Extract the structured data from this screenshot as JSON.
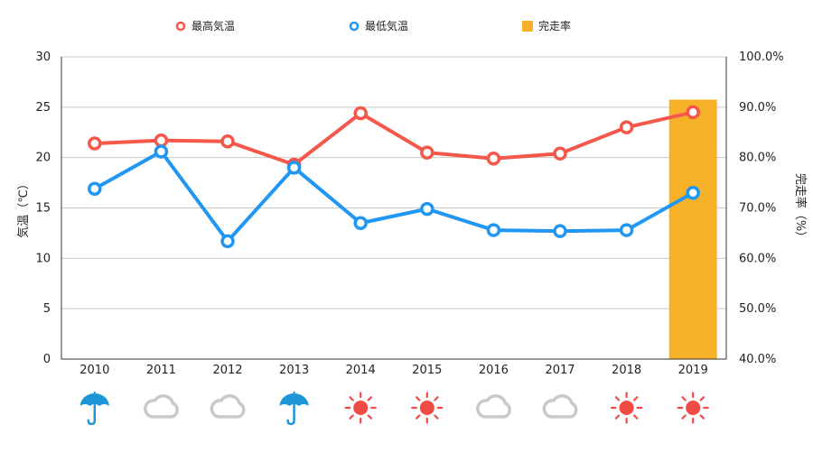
{
  "chart_data": {
    "type": "line",
    "categories": [
      "2010",
      "2011",
      "2012",
      "2013",
      "2014",
      "2015",
      "2016",
      "2017",
      "2018",
      "2019"
    ],
    "series": [
      {
        "name": "最高気温",
        "kind": "line",
        "axis": "left",
        "color": "#f5574a",
        "values": [
          21.4,
          21.7,
          21.6,
          19.3,
          24.4,
          20.5,
          19.9,
          20.4,
          23.0,
          24.5
        ]
      },
      {
        "name": "最低気温",
        "kind": "line",
        "axis": "left",
        "color": "#2196f3",
        "values": [
          16.9,
          20.6,
          11.7,
          19.0,
          13.5,
          14.9,
          12.8,
          12.7,
          12.8,
          16.5
        ]
      },
      {
        "name": "完走率",
        "kind": "bar",
        "axis": "right",
        "color": "#f6b129",
        "values": [
          null,
          null,
          null,
          null,
          null,
          null,
          null,
          null,
          null,
          91.5
        ]
      }
    ],
    "ylabel": "気温（℃）",
    "ylim": [
      0,
      30
    ],
    "yticks": [
      "0",
      "5",
      "10",
      "15",
      "20",
      "25",
      "30"
    ],
    "y2label": "完走率（%）",
    "y2lim": [
      40,
      100
    ],
    "y2ticks": [
      "40.0%",
      "50.0%",
      "60.0%",
      "70.0%",
      "80.0%",
      "90.0%",
      "100.0%"
    ],
    "grid": true,
    "legend_position": "top",
    "weather_icons": [
      "umbrella-icon",
      "cloud-icon",
      "cloud-icon",
      "umbrella-icon",
      "sun-icon",
      "sun-icon",
      "cloud-icon",
      "cloud-icon",
      "sun-icon",
      "sun-icon"
    ]
  }
}
